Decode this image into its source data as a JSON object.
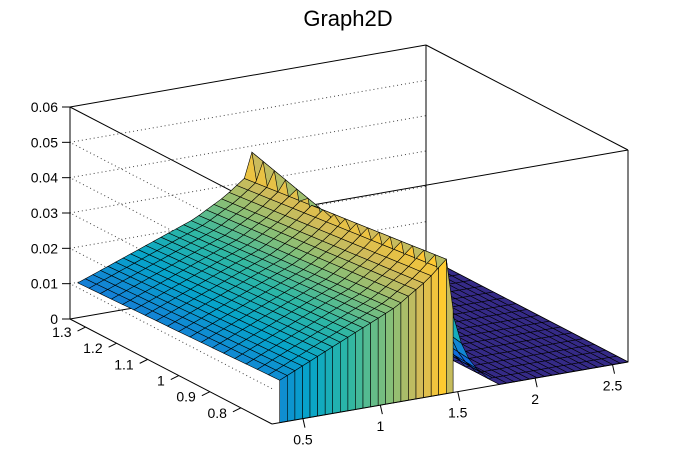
{
  "chart_data": {
    "type": "surface",
    "title": "Graph2D",
    "palette": "viridis-like",
    "colors": [
      "#352a87",
      "#0f5cdd",
      "#1481d6",
      "#06a4ca",
      "#2eb7a4",
      "#87bf77",
      "#d1bb59",
      "#fec832",
      "#f9fb0e"
    ],
    "x_ticks": [
      "0.5",
      "1",
      "1.5",
      "2",
      "2.5"
    ],
    "y_ticks": [
      "1.3",
      "1.2",
      "1.1",
      "1",
      "0.9",
      "0.8"
    ],
    "z_ticks": [
      "0",
      "0.01",
      "0.02",
      "0.03",
      "0.04",
      "0.05",
      "0.06"
    ],
    "xlim": [
      0.3,
      2.6
    ],
    "ylim": [
      0.7,
      1.35
    ],
    "zlim": [
      0,
      0.06
    ],
    "grid": true,
    "surface_profile": {
      "x": [
        0.35,
        0.6,
        0.85,
        1.1,
        1.3,
        1.4,
        1.45,
        1.5,
        1.6,
        1.8,
        2.1,
        2.5
      ],
      "z": [
        0.012,
        0.017,
        0.022,
        0.027,
        0.033,
        0.037,
        0.039,
        0.0,
        0.0,
        0.0,
        0.0,
        0.0
      ],
      "y_dependence": "increasing toward y = 0.7, ridge peaking near x = 1.45"
    }
  }
}
